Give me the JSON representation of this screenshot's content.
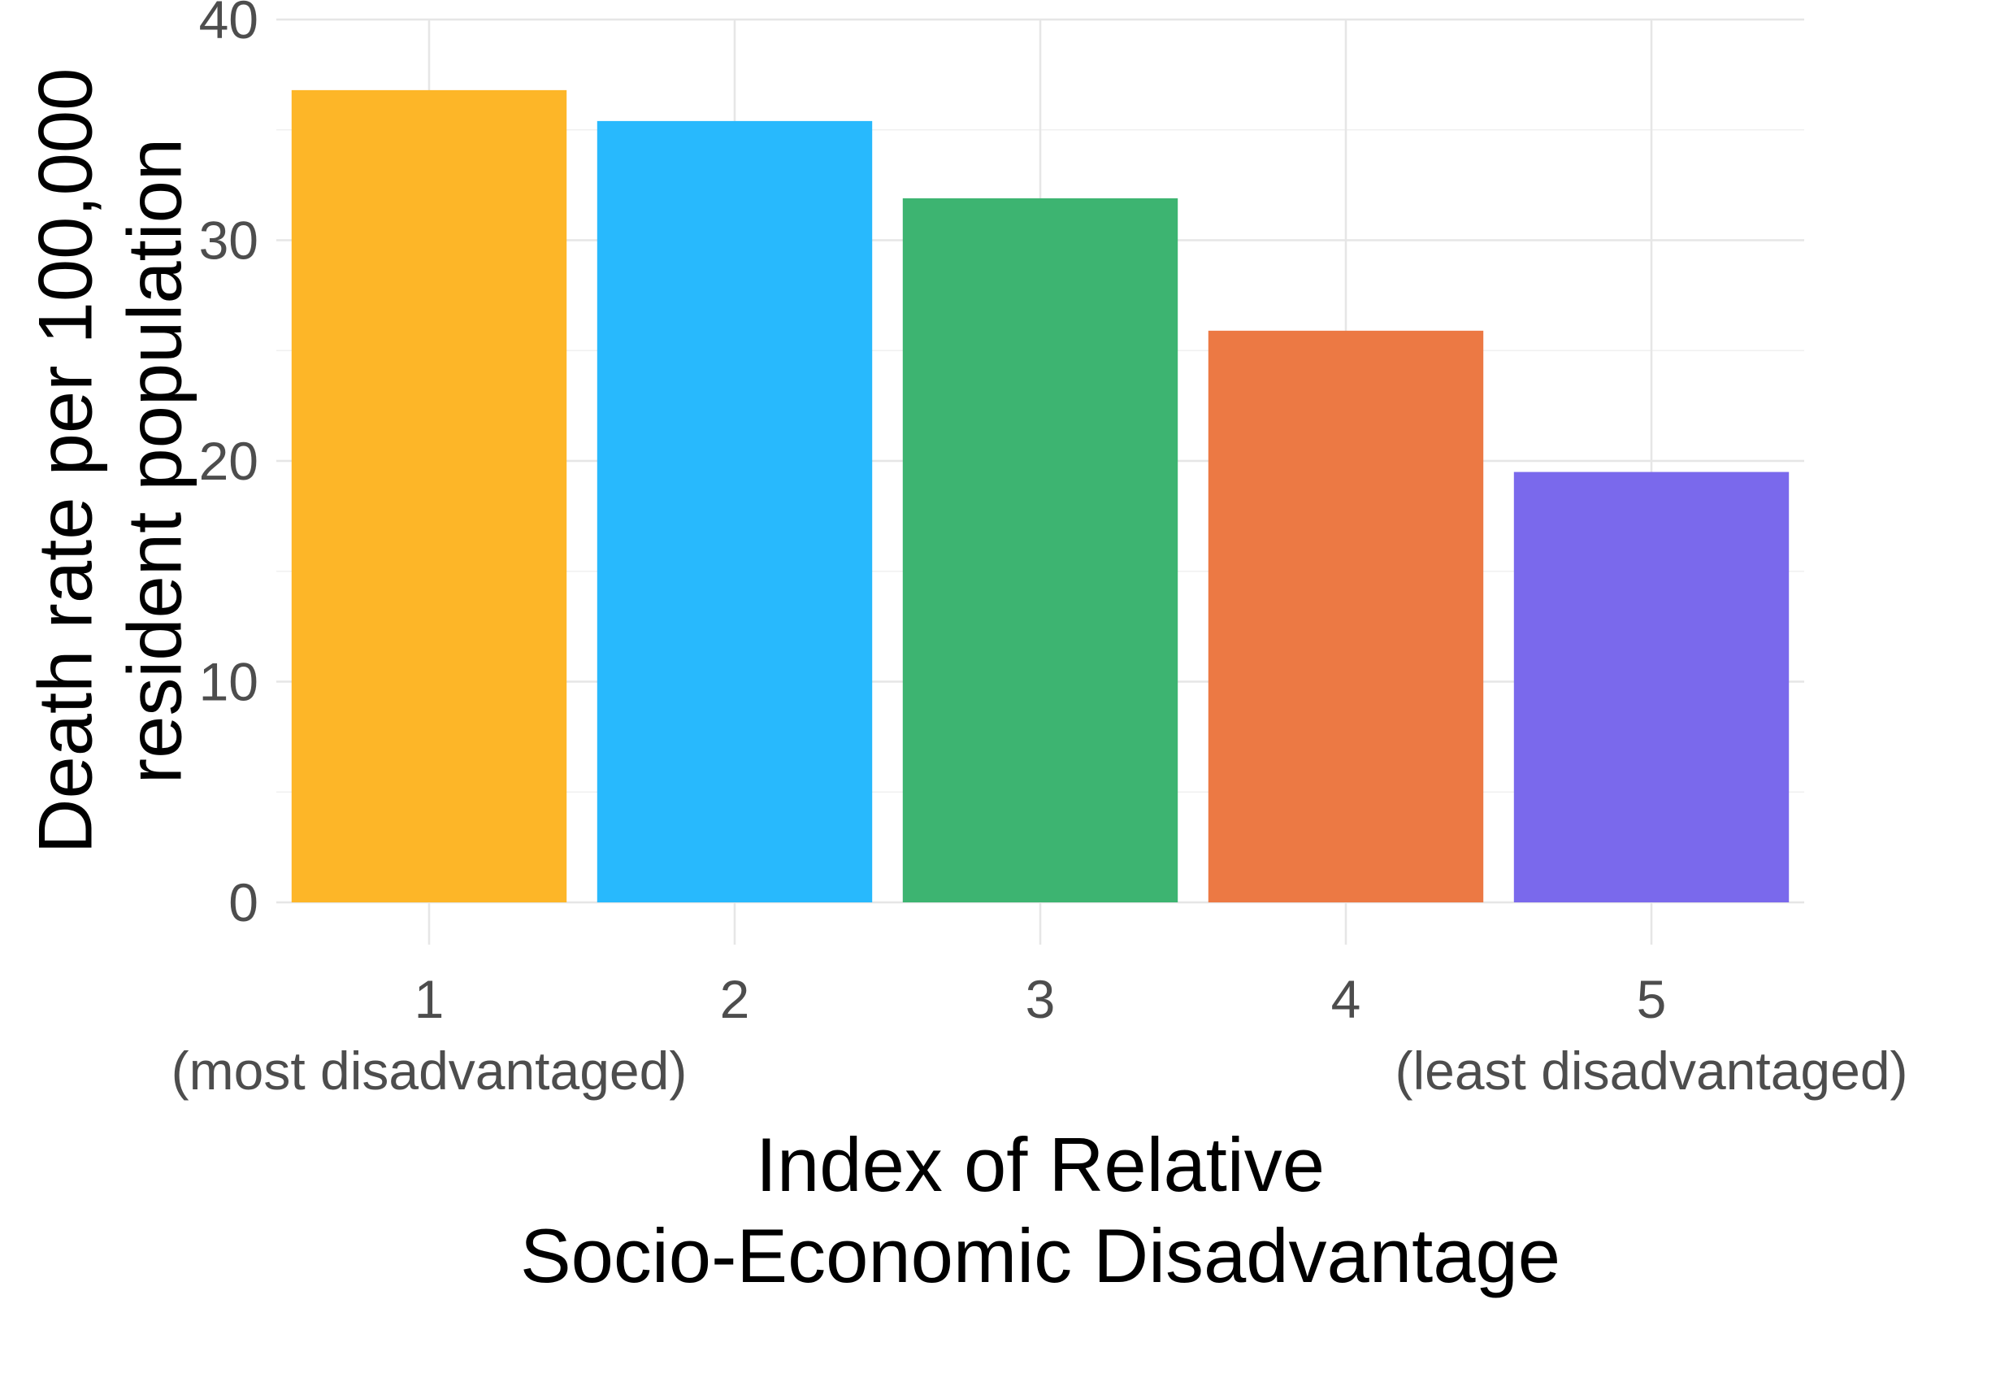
{
  "chart_data": {
    "type": "bar",
    "categories": [
      "1",
      "2",
      "3",
      "4",
      "5"
    ],
    "category_sublabels": [
      "(most disadvantaged)",
      "",
      "",
      "",
      "(least disadvantaged)"
    ],
    "values": [
      36.8,
      35.4,
      31.9,
      25.9,
      19.5
    ],
    "colors": [
      "#FDB628",
      "#28B9FD",
      "#3DB471",
      "#EC7944",
      "#7A69EC"
    ],
    "title": "",
    "xlabel": [
      "Index of Relative",
      "Socio-Economic Disadvantage"
    ],
    "ylabel": [
      "Death rate per 100,000",
      "resident population"
    ],
    "ylim": [
      0,
      40
    ],
    "yticks": [
      0,
      10,
      20,
      30,
      40
    ],
    "grid": true,
    "legend": "none"
  }
}
